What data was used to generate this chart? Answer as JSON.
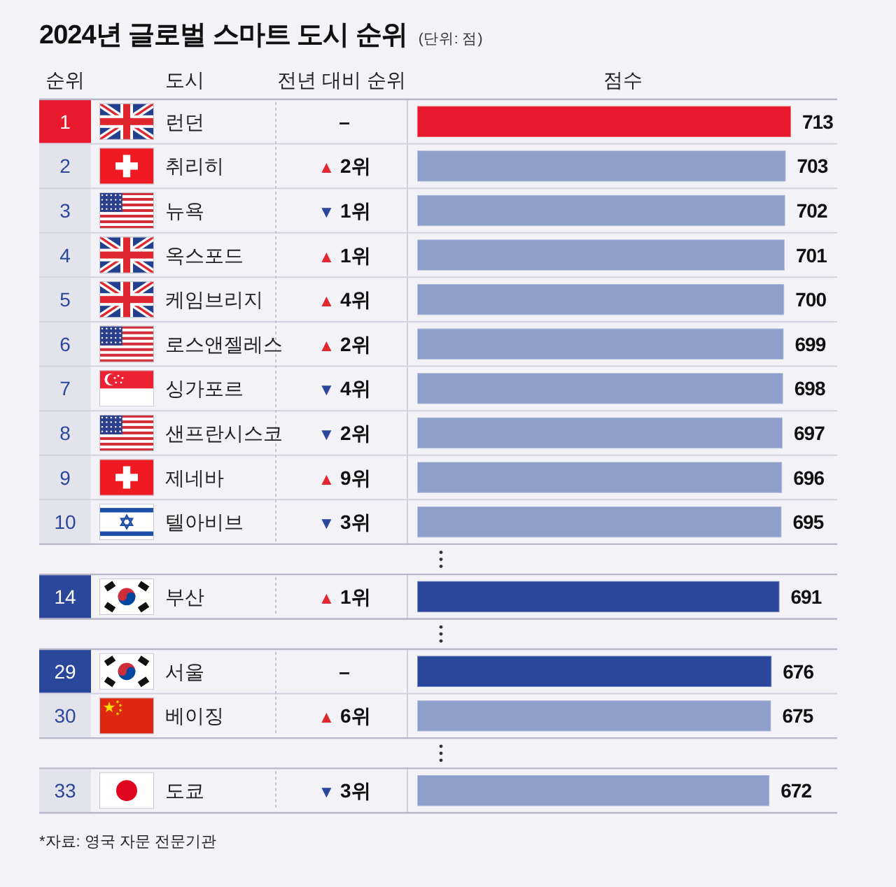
{
  "chart_data": {
    "type": "bar",
    "orientation": "horizontal",
    "title": "2024년 글로벌 스마트 도시 순위",
    "subtitle": "(단위: 점)",
    "ylabel": "도시",
    "xlabel": "점수",
    "categories": [
      "런던",
      "취리히",
      "뉴욕",
      "옥스포드",
      "케임브리지",
      "로스앤젤레스",
      "싱가포르",
      "샌프란시스코",
      "제네바",
      "텔아비브",
      null,
      "부산",
      null,
      "서울",
      "베이징",
      null,
      "도쿄"
    ],
    "values": [
      713,
      703,
      702,
      701,
      700,
      699,
      698,
      697,
      696,
      695,
      null,
      691,
      null,
      676,
      675,
      null,
      672
    ],
    "colors": [
      "#e8192c",
      "#8f9fcb",
      "#8f9fcb",
      "#8f9fcb",
      "#8f9fcb",
      "#8f9fcb",
      "#8f9fcb",
      "#8f9fcb",
      "#8f9fcb",
      "#8f9fcb",
      null,
      "#2b479c",
      null,
      "#2b479c",
      "#8f9fcb",
      null,
      "#8f9fcb"
    ],
    "data_labels": true,
    "tick_labels": "y",
    "annotations": [
      "순위",
      "전년 대비 순위",
      "1",
      "–",
      "2",
      "▲ 2위",
      "3",
      "▼ 1위",
      "4",
      "▲ 1위",
      "5",
      "▲ 4위",
      "6",
      "▲ 2위",
      "7",
      "▼ 4위",
      "8",
      "▼ 2위",
      "9",
      "▲ 9위",
      "10",
      "▼ 3위",
      "14",
      "▲ 1위",
      "29",
      "–",
      "30",
      "▲ 6위",
      "33",
      "▼ 3위",
      "*자료: 영국 자문 전문기관"
    ]
  }
}
